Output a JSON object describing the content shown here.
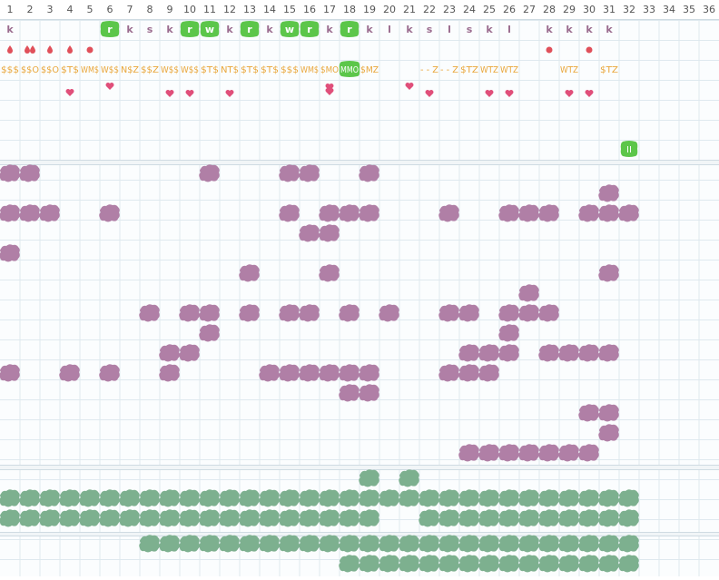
{
  "columns": [
    1,
    2,
    3,
    4,
    5,
    6,
    7,
    8,
    9,
    10,
    11,
    12,
    13,
    14,
    15,
    16,
    17,
    18,
    19,
    20,
    21,
    22,
    23,
    24,
    25,
    26,
    27,
    28,
    29,
    30,
    31,
    32,
    33,
    34,
    35,
    36
  ],
  "letters": [
    "k",
    null,
    null,
    null,
    null,
    "r",
    "k",
    "s",
    "k",
    "r",
    "w",
    "k",
    "r",
    "k",
    "w",
    "r",
    "k",
    "r",
    "k",
    "l",
    "k",
    "s",
    "l",
    "s",
    "k",
    "l",
    null,
    "k",
    "k",
    "k",
    "k",
    null,
    null,
    null,
    null,
    null
  ],
  "codes": [
    "$$$",
    "$$O",
    "$$O",
    "$T$",
    "WM$",
    "W$$",
    "N$Z",
    "$$Z",
    "W$$",
    "W$$",
    "$T$",
    "NT$",
    "$T$",
    "$T$",
    "$$$",
    "WM$",
    "$MO",
    "MMO",
    "$MZ",
    null,
    null,
    "- - Z",
    "- - Z",
    "$TZ",
    "WTZ",
    "WTZ",
    null,
    null,
    "WTZ",
    null,
    "$TZ",
    null,
    null,
    null,
    null,
    null
  ],
  "markers": [
    null,
    null,
    null,
    null,
    null,
    null,
    null,
    null,
    null,
    null,
    null,
    null,
    null,
    null,
    null,
    null,
    null,
    null,
    null,
    null,
    null,
    null,
    null,
    null,
    null,
    null,
    null,
    null,
    null,
    null,
    null,
    "II",
    null,
    null,
    null,
    null
  ]
}
